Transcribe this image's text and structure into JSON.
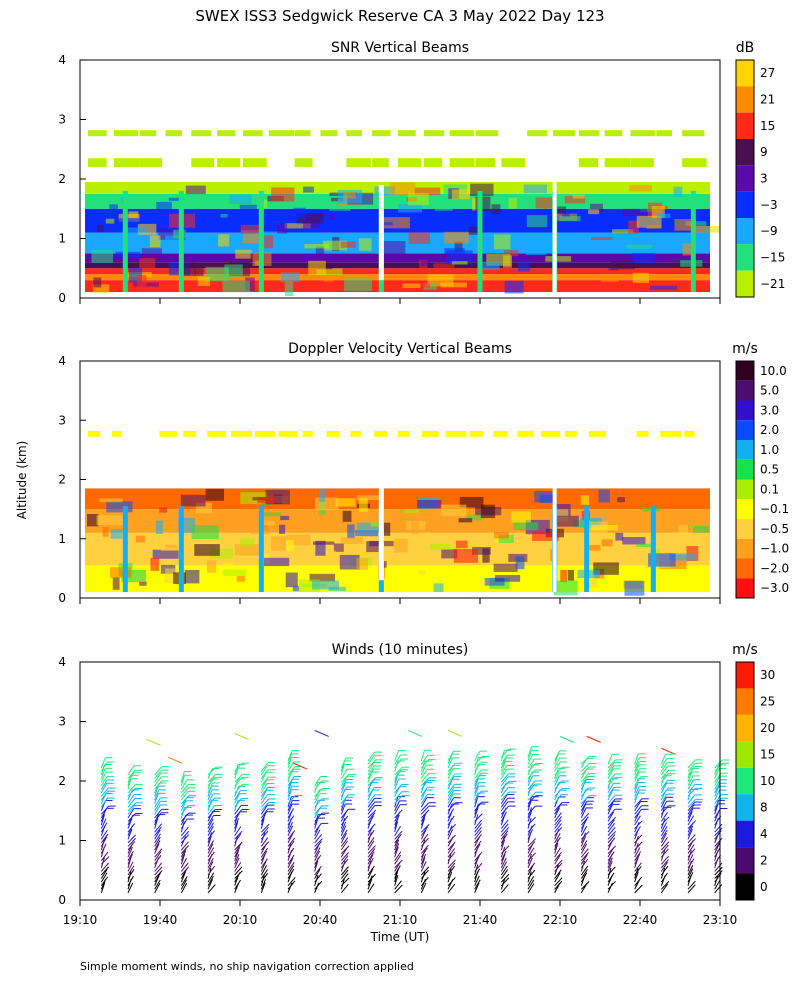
{
  "figure": {
    "title": "SWEX ISS3 Sedgwick Reserve CA   3 May 2022 Day 123",
    "y_axis_label": "Altitude (km)",
    "x_axis_label": "Time (UT)",
    "footnote": "Simple moment winds, no ship navigation correction applied"
  },
  "chart_data": [
    {
      "type": "heatmap",
      "title": "SNR Vertical Beams",
      "ylabel": "Altitude (km)",
      "ylim": [
        0,
        4
      ],
      "yticks": [
        "0",
        "1",
        "2",
        "3",
        "4"
      ],
      "xlim_min": [
        0,
        240
      ],
      "colorbar": {
        "unit": "dB",
        "labels": [
          "27",
          "21",
          "15",
          "9",
          "3",
          "−3",
          "−9",
          "−15",
          "−21"
        ],
        "colors": [
          "#ffd400",
          "#ff8c00",
          "#ff2a1a",
          "#4a0f4f",
          "#5a0aa8",
          "#0a2dff",
          "#1aa8ff",
          "#24e07a",
          "#b8f000"
        ]
      },
      "layers": [
        {
          "from_km": 0.1,
          "to_km": 0.3,
          "color": "#ff2a1a"
        },
        {
          "from_km": 0.3,
          "to_km": 0.4,
          "color": "#ff8c00"
        },
        {
          "from_km": 0.4,
          "to_km": 0.5,
          "color": "#ff2a1a"
        },
        {
          "from_km": 0.5,
          "to_km": 0.6,
          "color": "#4a0f4f"
        },
        {
          "from_km": 0.6,
          "to_km": 0.75,
          "color": "#5a0aa8"
        },
        {
          "from_km": 0.75,
          "to_km": 1.1,
          "color": "#1aa8ff"
        },
        {
          "from_km": 1.1,
          "to_km": 1.5,
          "color": "#0a2dff"
        },
        {
          "from_km": 1.5,
          "to_km": 1.75,
          "color": "#24e07a"
        },
        {
          "from_km": 1.75,
          "to_km": 1.95,
          "color": "#b8f000"
        },
        {
          "from_km": 2.2,
          "to_km": 2.35,
          "color": "#b8f000"
        },
        {
          "from_km": 2.72,
          "to_km": 2.82,
          "color": "#b8f000"
        }
      ]
    },
    {
      "type": "heatmap",
      "title": "Doppler Velocity Vertical Beams",
      "ylabel": "Altitude (km)",
      "ylim": [
        0,
        4
      ],
      "yticks": [
        "0",
        "1",
        "2",
        "3",
        "4"
      ],
      "colorbar": {
        "unit": "m/s",
        "labels": [
          "10.0",
          "5.0",
          "3.0",
          "2.0",
          "1.0",
          "0.5",
          "0.1",
          "−0.1",
          "−0.5",
          "−1.0",
          "−2.0",
          "−3.0"
        ],
        "colors": [
          "#300020",
          "#4a0f6e",
          "#3010c8",
          "#0a4aff",
          "#12b0f0",
          "#18e04a",
          "#a8f000",
          "#ffff00",
          "#ffd040",
          "#ffa020",
          "#ff6a00",
          "#ff1010"
        ]
      },
      "layers": [
        {
          "from_km": 0.1,
          "to_km": 0.55,
          "color": "#ffff00"
        },
        {
          "from_km": 0.55,
          "to_km": 1.1,
          "color": "#ffd040"
        },
        {
          "from_km": 1.1,
          "to_km": 1.5,
          "color": "#ffa020"
        },
        {
          "from_km": 1.5,
          "to_km": 1.85,
          "color": "#ff6a00"
        },
        {
          "from_km": 2.72,
          "to_km": 2.82,
          "color": "#ffff00"
        }
      ]
    },
    {
      "type": "scatter",
      "title": "Winds (10 minutes)",
      "ylabel": "Altitude (km)",
      "ylim": [
        0,
        4
      ],
      "yticks": [
        "0",
        "1",
        "2",
        "3",
        "4"
      ],
      "x_ticks": [
        "19:10",
        "19:40",
        "20:10",
        "20:40",
        "21:10",
        "21:40",
        "22:10",
        "22:40",
        "23:10"
      ],
      "xlabel": "Time (UT)",
      "colorbar": {
        "unit": "m/s",
        "labels": [
          "30",
          "25",
          "20",
          "15",
          "10",
          "8",
          "4",
          "2",
          "0"
        ],
        "colors": [
          "#ff1a00",
          "#ff7a00",
          "#ffb400",
          "#9ee800",
          "#1ee87a",
          "#10b4e8",
          "#1a1adc",
          "#4a0a6e",
          "#000000"
        ]
      },
      "profile_times_min": [
        8,
        18,
        28,
        38,
        48,
        58,
        68,
        78,
        88,
        98,
        108,
        118,
        128,
        138,
        148,
        158,
        168,
        178,
        188,
        198,
        208,
        218,
        228,
        238
      ],
      "profile_tops_km": [
        2.2,
        2.05,
        2.05,
        1.95,
        2.05,
        2.1,
        2.1,
        2.3,
        1.9,
        2.2,
        2.3,
        2.3,
        2.3,
        2.3,
        2.3,
        2.35,
        2.35,
        2.3,
        2.25,
        2.25,
        2.25,
        2.25,
        2.2,
        2.2
      ]
    }
  ]
}
